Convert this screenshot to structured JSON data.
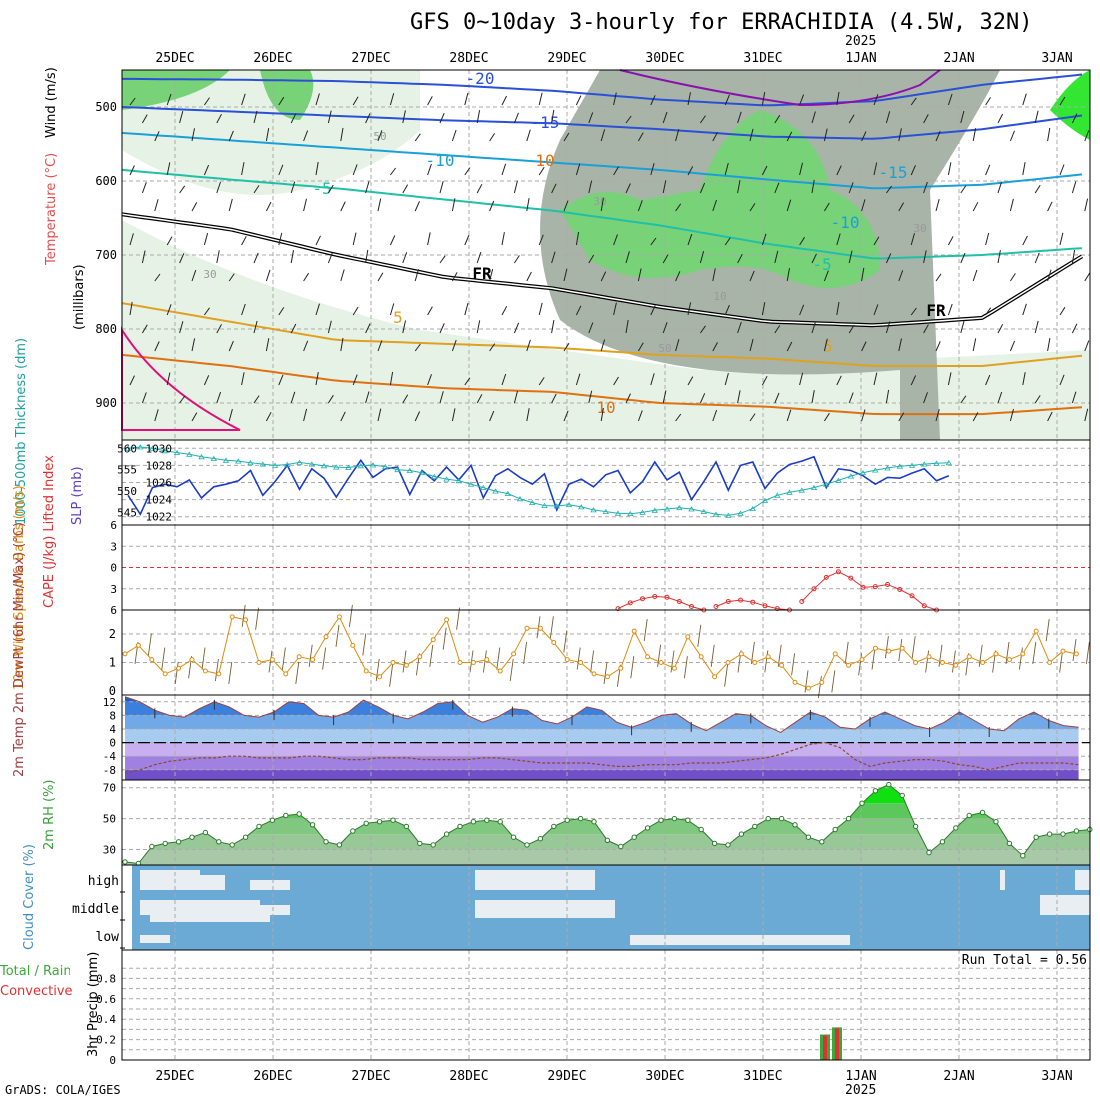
{
  "title": "GFS 0~10day 3-hourly for ERRACHIDIA (4.5W, 32N)",
  "year": "2025",
  "credit": "GrADS: COLA/IGES",
  "colors": {
    "rh_light": "#e6f2e6",
    "rh_mid": "#c8dcc8",
    "rh_grey": "#a8b4a8",
    "rh_green": "#78d278",
    "rh_bright": "#32e632",
    "freezing": "#000000",
    "temp_cold": "#2a50d8",
    "temp_cool": "#1aa0d8",
    "temp_mild": "#20c0a8",
    "temp_warm": "#e0a020",
    "temp_hot": "#e07010",
    "temp_veryhot": "#e0107a",
    "slp": "#1a3cc8",
    "thickness": "#20b0b0",
    "cape_lifted": "#e03030",
    "wind": "#e08c10",
    "temp2m": "#2878d0",
    "dew2m": "#9070c8",
    "rh2m": "#58c058",
    "cloud": "#6aaad4",
    "precip_total": "#3ca83c",
    "precip_conv": "#e03030"
  },
  "chart_data": [
    {
      "panel": "upper-air",
      "type": "heatmap",
      "x_dates": [
        "25DEC",
        "26DEC",
        "27DEC",
        "28DEC",
        "29DEC",
        "30DEC",
        "31DEC",
        "1JAN",
        "2JAN",
        "3JAN"
      ],
      "ylabel": "(millibars)",
      "legend_labels": [
        "Wind (m/s)",
        "Temperature (°C)",
        "RH (%)"
      ],
      "y_ticks": [
        500,
        600,
        700,
        800,
        900
      ],
      "ylim": [
        450,
        950
      ],
      "contour_labels": [
        "-20",
        "-15",
        "-10",
        "-5",
        "FR",
        "5",
        "10",
        "-15",
        "-10",
        "-5",
        "FR",
        "5",
        "10",
        "30",
        "30",
        "30",
        "10",
        "50",
        "50"
      ],
      "isotherms": [
        {
          "label": "-20",
          "pressure": [
            462,
            463,
            465,
            470,
            478,
            490,
            498,
            492,
            470,
            455
          ]
        },
        {
          "label": "-15",
          "pressure": [
            500,
            506,
            512,
            518,
            522,
            530,
            540,
            543,
            530,
            510
          ]
        },
        {
          "label": "-10",
          "pressure": [
            535,
            545,
            555,
            565,
            575,
            585,
            598,
            610,
            605,
            590
          ]
        },
        {
          "label": "-5",
          "pressure": [
            585,
            598,
            610,
            625,
            640,
            660,
            685,
            705,
            700,
            690
          ]
        },
        {
          "label": "FR",
          "pressure": [
            645,
            665,
            700,
            730,
            745,
            770,
            790,
            795,
            785,
            695
          ]
        },
        {
          "label": "5",
          "pressure": [
            765,
            790,
            815,
            820,
            825,
            835,
            840,
            850,
            850,
            835
          ]
        },
        {
          "label": "10",
          "pressure": [
            835,
            850,
            870,
            880,
            885,
            900,
            905,
            915,
            915,
            905
          ]
        }
      ]
    },
    {
      "panel": "thickness-slp",
      "type": "line",
      "ylabel_left": "1000-500mb Thickness (dm)",
      "ylabel_right": "SLP (mb)",
      "left_ticks": [
        545,
        550,
        555,
        560
      ],
      "right_ticks": [
        1022,
        1024,
        1026,
        1028,
        1030
      ],
      "ylim_left": [
        543,
        561
      ],
      "series": [
        {
          "values": [
            1024.5,
            1022.3,
            1025.4,
            1025.8,
            1025.5,
            1026.3,
            1024.2,
            1025.5,
            1025.8,
            1026.2,
            1027.4,
            1024.5,
            1026.1,
            1028.0,
            1025.2,
            1027.6,
            1026.5,
            1024.3,
            1026.5,
            1028.6,
            1026.6,
            1027.6,
            1027.8,
            1024.6,
            1027.4,
            1026.2,
            1027.8,
            1026.3,
            1028.0,
            1024.2,
            1026.8,
            1027.6,
            1026.6,
            1025.8,
            1027.0,
            1022.8,
            1025.8,
            1026.4,
            1025.5,
            1026.9,
            1027.4,
            1024.8,
            1026.1,
            1028.4,
            1026.3,
            1027.2,
            1024.0,
            1026.1,
            1028.4,
            1025.1,
            1028.0,
            1028.4,
            1025.3,
            1027.1,
            1028.1,
            1028.5,
            1029.0,
            1025.4,
            1027.6,
            1027.4,
            1026.8,
            1025.8,
            1026.6,
            1026.5,
            1027.1,
            1027.6,
            1026.2,
            1026.8
          ]
        },
        {
          "values": [
            560.0,
            560.3,
            560.0,
            559.4,
            559.0,
            558.6,
            558.0,
            557.6,
            557.2,
            557.0,
            556.6,
            556.3,
            556.0,
            556.2,
            556.7,
            556.3,
            555.9,
            555.6,
            555.5,
            555.9,
            556.1,
            555.7,
            555.0,
            554.8,
            554.3,
            553.4,
            552.8,
            552.4,
            551.6,
            550.8,
            550.0,
            549.4,
            548.2,
            547.3,
            546.6,
            546.5,
            546.8,
            546.3,
            545.6,
            545.2,
            544.8,
            544.7,
            545.0,
            545.5,
            545.8,
            546.1,
            545.8,
            545.2,
            544.6,
            544.3,
            544.8,
            545.9,
            547.8,
            549.0,
            549.7,
            550.2,
            550.8,
            551.6,
            552.5,
            553.5,
            554.3,
            554.9,
            555.4,
            555.8,
            556.0,
            556.3,
            556.5,
            556.6
          ]
        }
      ]
    },
    {
      "panel": "cape-lifted",
      "type": "line",
      "ylabel": "CAPE (J/kg) Lifted Index",
      "left_ticks": [
        -6,
        -3,
        0,
        3,
        6
      ],
      "ylim": [
        -6,
        6
      ],
      "series": [
        {
          "start_step": 40,
          "values": [
            5.8,
            5.0,
            4.4,
            4.1,
            4.2,
            4.8,
            5.5,
            6.0
          ]
        },
        {
          "start_step": 48,
          "values": [
            5.5,
            4.8,
            4.6,
            4.9,
            5.4,
            5.8,
            6.0
          ]
        },
        {
          "start_step": 55,
          "values": [
            4.8,
            3.0,
            1.4,
            0.6,
            1.5,
            2.8,
            2.7,
            2.4,
            3.1,
            4.0,
            5.4,
            6.0
          ]
        }
      ]
    },
    {
      "panel": "wind10m",
      "type": "line",
      "ylabel": "10m Wind Speed & Barbs (m/s)",
      "left_ticks": [
        0,
        1,
        2
      ],
      "ylim": [
        0,
        2.7
      ],
      "series": [
        {
          "values": [
            1.3,
            1.6,
            1.1,
            0.6,
            0.8,
            1.1,
            0.7,
            0.6,
            2.6,
            2.5,
            1.0,
            1.1,
            0.6,
            1.2,
            1.1,
            1.9,
            2.6,
            1.6,
            0.7,
            0.5,
            1.0,
            0.9,
            1.2,
            1.8,
            2.5,
            1.0,
            1.0,
            1.1,
            0.7,
            1.3,
            2.2,
            2.2,
            1.7,
            1.1,
            1.0,
            0.6,
            0.5,
            0.8,
            2.1,
            1.2,
            1.0,
            0.8,
            1.9,
            1.2,
            0.5,
            1.0,
            1.3,
            1.0,
            1.2,
            0.9,
            0.3,
            0.1,
            0.3,
            1.3,
            0.9,
            1.1,
            1.5,
            1.4,
            1.5,
            1.0,
            1.2,
            1.0,
            0.9,
            1.2,
            1.0,
            1.3,
            1.1,
            1.3,
            2.1,
            1.0,
            1.4,
            1.3
          ]
        }
      ]
    },
    {
      "panel": "temp2m",
      "type": "area",
      "ylabel": "2m Temp 2m DewPt (6hr Min/Max) (°C)",
      "left_ticks": [
        -8,
        -4,
        0,
        4,
        8,
        12
      ],
      "ylim": [
        -11,
        14
      ],
      "series": [
        {
          "values": [
            13.5,
            12.0,
            9.5,
            8.0,
            7.5,
            10.0,
            12.0,
            10.5,
            8.0,
            7.5,
            9.0,
            12.0,
            11.5,
            8.0,
            7.5,
            9.0,
            12.5,
            10.5,
            8.0,
            7.0,
            9.0,
            11.5,
            12.0,
            8.0,
            6.0,
            7.5,
            10.0,
            9.5,
            6.5,
            5.5,
            7.5,
            10.5,
            9.5,
            6.0,
            4.5,
            6.0,
            8.0,
            8.5,
            5.5,
            3.5,
            6.0,
            8.5,
            8.0,
            5.0,
            3.0,
            6.0,
            9.0,
            7.5,
            4.5,
            4.0,
            7.0,
            9.0,
            7.0,
            5.0,
            4.0,
            6.0,
            9.0,
            6.5,
            4.0,
            3.5,
            7.0,
            9.0,
            6.5,
            5.0,
            4.5
          ]
        },
        {
          "values": [
            -9.0,
            -8.0,
            -6.5,
            -5.5,
            -5.0,
            -4.5,
            -4.5,
            -4.0,
            -4.0,
            -4.5,
            -4.5,
            -4.5,
            -4.0,
            -4.0,
            -4.5,
            -5.0,
            -5.0,
            -4.5,
            -4.5,
            -4.5,
            -5.0,
            -5.0,
            -5.0,
            -5.0,
            -4.5,
            -4.5,
            -5.0,
            -5.5,
            -6.0,
            -6.0,
            -6.0,
            -6.0,
            -6.5,
            -7.0,
            -7.0,
            -6.5,
            -6.5,
            -6.5,
            -6.0,
            -6.0,
            -6.0,
            -5.5,
            -5.0,
            -4.5,
            -3.5,
            -2.0,
            -0.5,
            0.0,
            -1.5,
            -5.0,
            -7.0,
            -6.0,
            -5.5,
            -5.0,
            -5.0,
            -5.5,
            -6.5,
            -7.0,
            -8.0,
            -7.0,
            -6.0,
            -6.0,
            -6.0,
            -6.0,
            -6.5
          ]
        }
      ]
    },
    {
      "panel": "rh2m",
      "type": "area",
      "ylabel": "2m RH (%)",
      "left_ticks": [
        30,
        50,
        70
      ],
      "ylim": [
        20,
        75
      ],
      "series": [
        {
          "values": [
            22,
            21,
            32,
            34,
            35,
            38,
            41,
            35,
            33,
            38,
            45,
            49,
            52,
            53,
            46,
            35,
            33,
            42,
            47,
            48,
            49,
            45,
            34,
            33,
            40,
            45,
            48,
            49,
            48,
            38,
            33,
            37,
            45,
            49,
            50,
            48,
            36,
            32,
            38,
            44,
            49,
            50,
            49,
            43,
            34,
            33,
            40,
            45,
            50,
            50,
            46,
            38,
            35,
            43,
            50,
            60,
            68,
            72,
            65,
            45,
            28,
            35,
            44,
            52,
            54,
            48,
            34,
            26,
            38,
            40,
            40,
            42,
            43
          ]
        }
      ]
    },
    {
      "panel": "cloud",
      "type": "heatmap",
      "ylabel": "Cloud Cover (%)",
      "row_labels": [
        "high",
        "middle",
        "low"
      ]
    },
    {
      "panel": "precip",
      "type": "bar",
      "ylabel": "3hr Precip (mm)",
      "legend_labels": [
        "Total / Rain",
        "Convective"
      ],
      "left_ticks": [
        0,
        0.2,
        0.4,
        0.6,
        0.8
      ],
      "ylim": [
        0,
        1.0
      ],
      "run_total": "Run Total = 0.56",
      "bars": [
        {
          "date": "31DEC 18Z",
          "total": 0.25,
          "convective": 0.24
        },
        {
          "date": "31DEC 21Z",
          "total": 0.32,
          "convective": 0.31
        }
      ]
    }
  ]
}
